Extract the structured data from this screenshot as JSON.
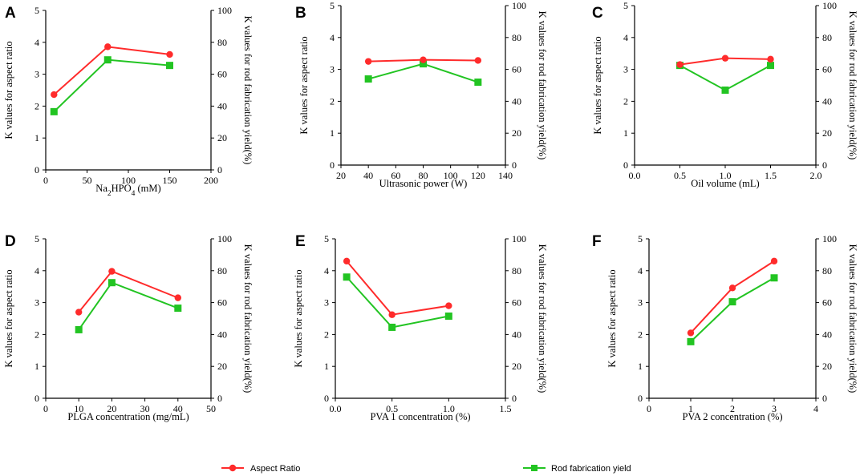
{
  "colors": {
    "aspect": "#ff2b2b",
    "yield": "#22c422"
  },
  "legend": {
    "aspect_label": "Aspect Ratio",
    "yield_label": "Rod fabrication yield"
  },
  "chart_data": [
    {
      "type": "line",
      "panel": "A",
      "xlabel": {
        "pre": "Na",
        "sub1": "2",
        "mid": "HPO",
        "sub2": "4",
        "post": " (mM)"
      },
      "ylabel": "K values for aspect ratio",
      "y2label": "K values for rod fabrication yield(%)",
      "xlim": [
        0,
        200
      ],
      "xticks": [
        0,
        50,
        100,
        150,
        200
      ],
      "ylim": [
        0,
        5
      ],
      "yticks": [
        0,
        1,
        2,
        3,
        4,
        5
      ],
      "y2lim": [
        0,
        100
      ],
      "y2ticks": [
        0,
        20,
        40,
        60,
        80,
        100
      ],
      "x": [
        10,
        75,
        150
      ],
      "series": [
        {
          "name": "Aspect Ratio",
          "axis": "left",
          "values": [
            2.36,
            3.86,
            3.62
          ]
        },
        {
          "name": "Rod fabrication yield",
          "axis": "right",
          "values": [
            36.5,
            69.0,
            65.5
          ]
        }
      ]
    },
    {
      "type": "line",
      "panel": "B",
      "xlabel": "Ultrasonic power (W)",
      "ylabel": "K values for aspect ratio",
      "y2label": "K values for rod fabrication yield(%)",
      "xlim": [
        20,
        140
      ],
      "xticks": [
        20,
        40,
        60,
        80,
        100,
        120,
        140
      ],
      "ylim": [
        0,
        5
      ],
      "yticks": [
        0,
        1,
        2,
        3,
        4,
        5
      ],
      "y2lim": [
        0,
        100
      ],
      "y2ticks": [
        0,
        20,
        40,
        60,
        80,
        100
      ],
      "x": [
        40,
        80,
        120
      ],
      "series": [
        {
          "name": "Aspect Ratio",
          "axis": "left",
          "values": [
            3.25,
            3.3,
            3.28
          ]
        },
        {
          "name": "Rod fabrication yield",
          "axis": "right",
          "values": [
            54.0,
            63.5,
            52.0
          ]
        }
      ]
    },
    {
      "type": "line",
      "panel": "C",
      "xlabel": "Oil volume (mL)",
      "ylabel": "K values for aspect ratio",
      "y2label": "K values for rod fabrication yield(%)",
      "xlim": [
        0,
        2
      ],
      "xticks": [
        "0.0",
        "0.5",
        "1.0",
        "1.5",
        "2.0"
      ],
      "ylim": [
        0,
        5
      ],
      "yticks": [
        0,
        1,
        2,
        3,
        4,
        5
      ],
      "y2lim": [
        0,
        100
      ],
      "y2ticks": [
        0,
        20,
        40,
        60,
        80,
        100
      ],
      "x": [
        0.5,
        1.0,
        1.5
      ],
      "series": [
        {
          "name": "Aspect Ratio",
          "axis": "left",
          "values": [
            3.15,
            3.35,
            3.32
          ]
        },
        {
          "name": "Rod fabrication yield",
          "axis": "right",
          "values": [
            62.5,
            47.0,
            62.5
          ]
        }
      ]
    },
    {
      "type": "line",
      "panel": "D",
      "xlabel": "PLGA concentration (mg/mL)",
      "ylabel": "K values for aspect ratio",
      "y2label": "K values for rod fabrication yield(%)",
      "xlim": [
        0,
        50
      ],
      "xticks": [
        0,
        10,
        20,
        30,
        40,
        50
      ],
      "ylim": [
        0,
        5
      ],
      "yticks": [
        0,
        1,
        2,
        3,
        4,
        5
      ],
      "y2lim": [
        0,
        100
      ],
      "y2ticks": [
        0,
        20,
        40,
        60,
        80,
        100
      ],
      "x": [
        10,
        20,
        40
      ],
      "series": [
        {
          "name": "Aspect Ratio",
          "axis": "left",
          "values": [
            2.7,
            3.98,
            3.15
          ]
        },
        {
          "name": "Rod fabrication yield",
          "axis": "right",
          "values": [
            43.0,
            72.5,
            56.5
          ]
        }
      ]
    },
    {
      "type": "line",
      "panel": "E",
      "xlabel": "PVA 1 concentration (%)",
      "ylabel": "K values for aspect ratio",
      "y2label": "K values for rod fabrication yield(%)",
      "xlim": [
        0,
        1.5
      ],
      "xticks": [
        "0.0",
        "0.5",
        "1.0",
        "1.5"
      ],
      "ylim": [
        0,
        5
      ],
      "yticks": [
        0,
        1,
        2,
        3,
        4,
        5
      ],
      "y2lim": [
        0,
        100
      ],
      "y2ticks": [
        0,
        20,
        40,
        60,
        80,
        100
      ],
      "x": [
        0.1,
        0.5,
        1.0
      ],
      "series": [
        {
          "name": "Aspect Ratio",
          "axis": "left",
          "values": [
            4.3,
            2.62,
            2.9
          ]
        },
        {
          "name": "Rod fabrication yield",
          "axis": "right",
          "values": [
            76.0,
            44.5,
            51.5
          ]
        }
      ]
    },
    {
      "type": "line",
      "panel": "F",
      "xlabel": "PVA 2 concentration (%)",
      "ylabel": "K values for aspect ratio",
      "y2label": "K values for rod fabrication yield(%)",
      "xlim": [
        0,
        4
      ],
      "xticks": [
        0,
        1,
        2,
        3,
        4
      ],
      "ylim": [
        0,
        5
      ],
      "yticks": [
        0,
        1,
        2,
        3,
        4,
        5
      ],
      "y2lim": [
        0,
        100
      ],
      "y2ticks": [
        0,
        20,
        40,
        60,
        80,
        100
      ],
      "x": [
        1,
        2,
        3
      ],
      "series": [
        {
          "name": "Aspect Ratio",
          "axis": "left",
          "values": [
            2.05,
            3.46,
            4.3
          ]
        },
        {
          "name": "Rod fabrication yield",
          "axis": "right",
          "values": [
            35.5,
            60.5,
            75.5
          ]
        }
      ]
    }
  ]
}
